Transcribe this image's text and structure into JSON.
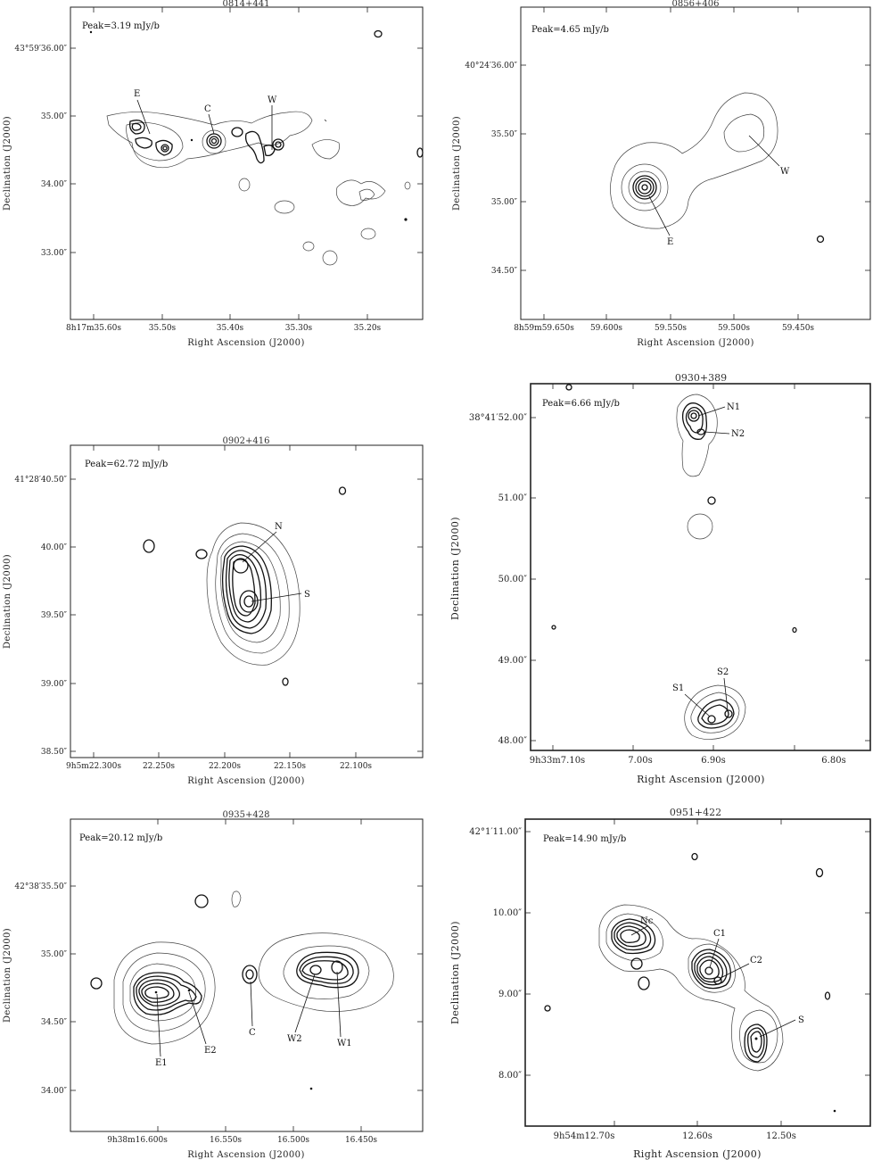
{
  "xlabel": "Right Ascension (J2000)",
  "ylabel": "Declination (J2000)",
  "panels": [
    {
      "title": "0814+441",
      "peak": "Peak=3.19 mJy/b",
      "xticks": [
        "8h17m35.60s",
        "35.50s",
        "35.40s",
        "35.30s",
        "35.20s"
      ],
      "yticks": [
        "43°59′36.00″",
        "35.00″",
        "34.00″",
        "33.00″"
      ],
      "components": [
        "E",
        "C",
        "W"
      ]
    },
    {
      "title": "0856+406",
      "peak": "Peak=4.65 mJy/b",
      "xticks": [
        "8h59m59.650s",
        "59.600s",
        "59.550s",
        "59.500s",
        "59.450s"
      ],
      "yticks": [
        "40°24′36.00″",
        "35.50″",
        "35.00″",
        "34.50″"
      ],
      "components": [
        "E",
        "W"
      ]
    },
    {
      "title": "0902+416",
      "peak": "Peak=62.72 mJy/b",
      "xticks": [
        "9h5m22.300s",
        "22.250s",
        "22.200s",
        "22.150s",
        "22.100s"
      ],
      "yticks": [
        "41°28′40.50″",
        "40.00″",
        "39.50″",
        "39.00″",
        "38.50″"
      ],
      "components": [
        "N",
        "S"
      ]
    },
    {
      "title": "0930+389",
      "peak": "Peak=6.66 mJy/b",
      "xticks": [
        "9h33m7.10s",
        "7.00s",
        "6.90s",
        "6.80s"
      ],
      "yticks": [
        "38°41′52.00″",
        "51.00″",
        "50.00″",
        "49.00″",
        "48.00″"
      ],
      "components": [
        "N1",
        "N2",
        "S1",
        "S2"
      ]
    },
    {
      "title": "0935+428",
      "peak": "Peak=20.12 mJy/b",
      "xticks": [
        "9h38m16.600s",
        "16.550s",
        "16.500s",
        "16.450s"
      ],
      "yticks": [
        "42°38′35.50″",
        "35.00″",
        "34.50″",
        "34.00″"
      ],
      "components": [
        "E1",
        "E2",
        "C",
        "W2",
        "W1"
      ]
    },
    {
      "title": "0951+422",
      "peak": "Peak=14.90 mJy/b",
      "xticks": [
        "9h54m12.70s",
        "12.60s",
        "12.50s"
      ],
      "yticks": [
        "42°1′11.00″",
        "10.00″",
        "9.00″",
        "8.00″"
      ],
      "components": [
        "Nc",
        "C1",
        "C2",
        "S"
      ]
    }
  ]
}
